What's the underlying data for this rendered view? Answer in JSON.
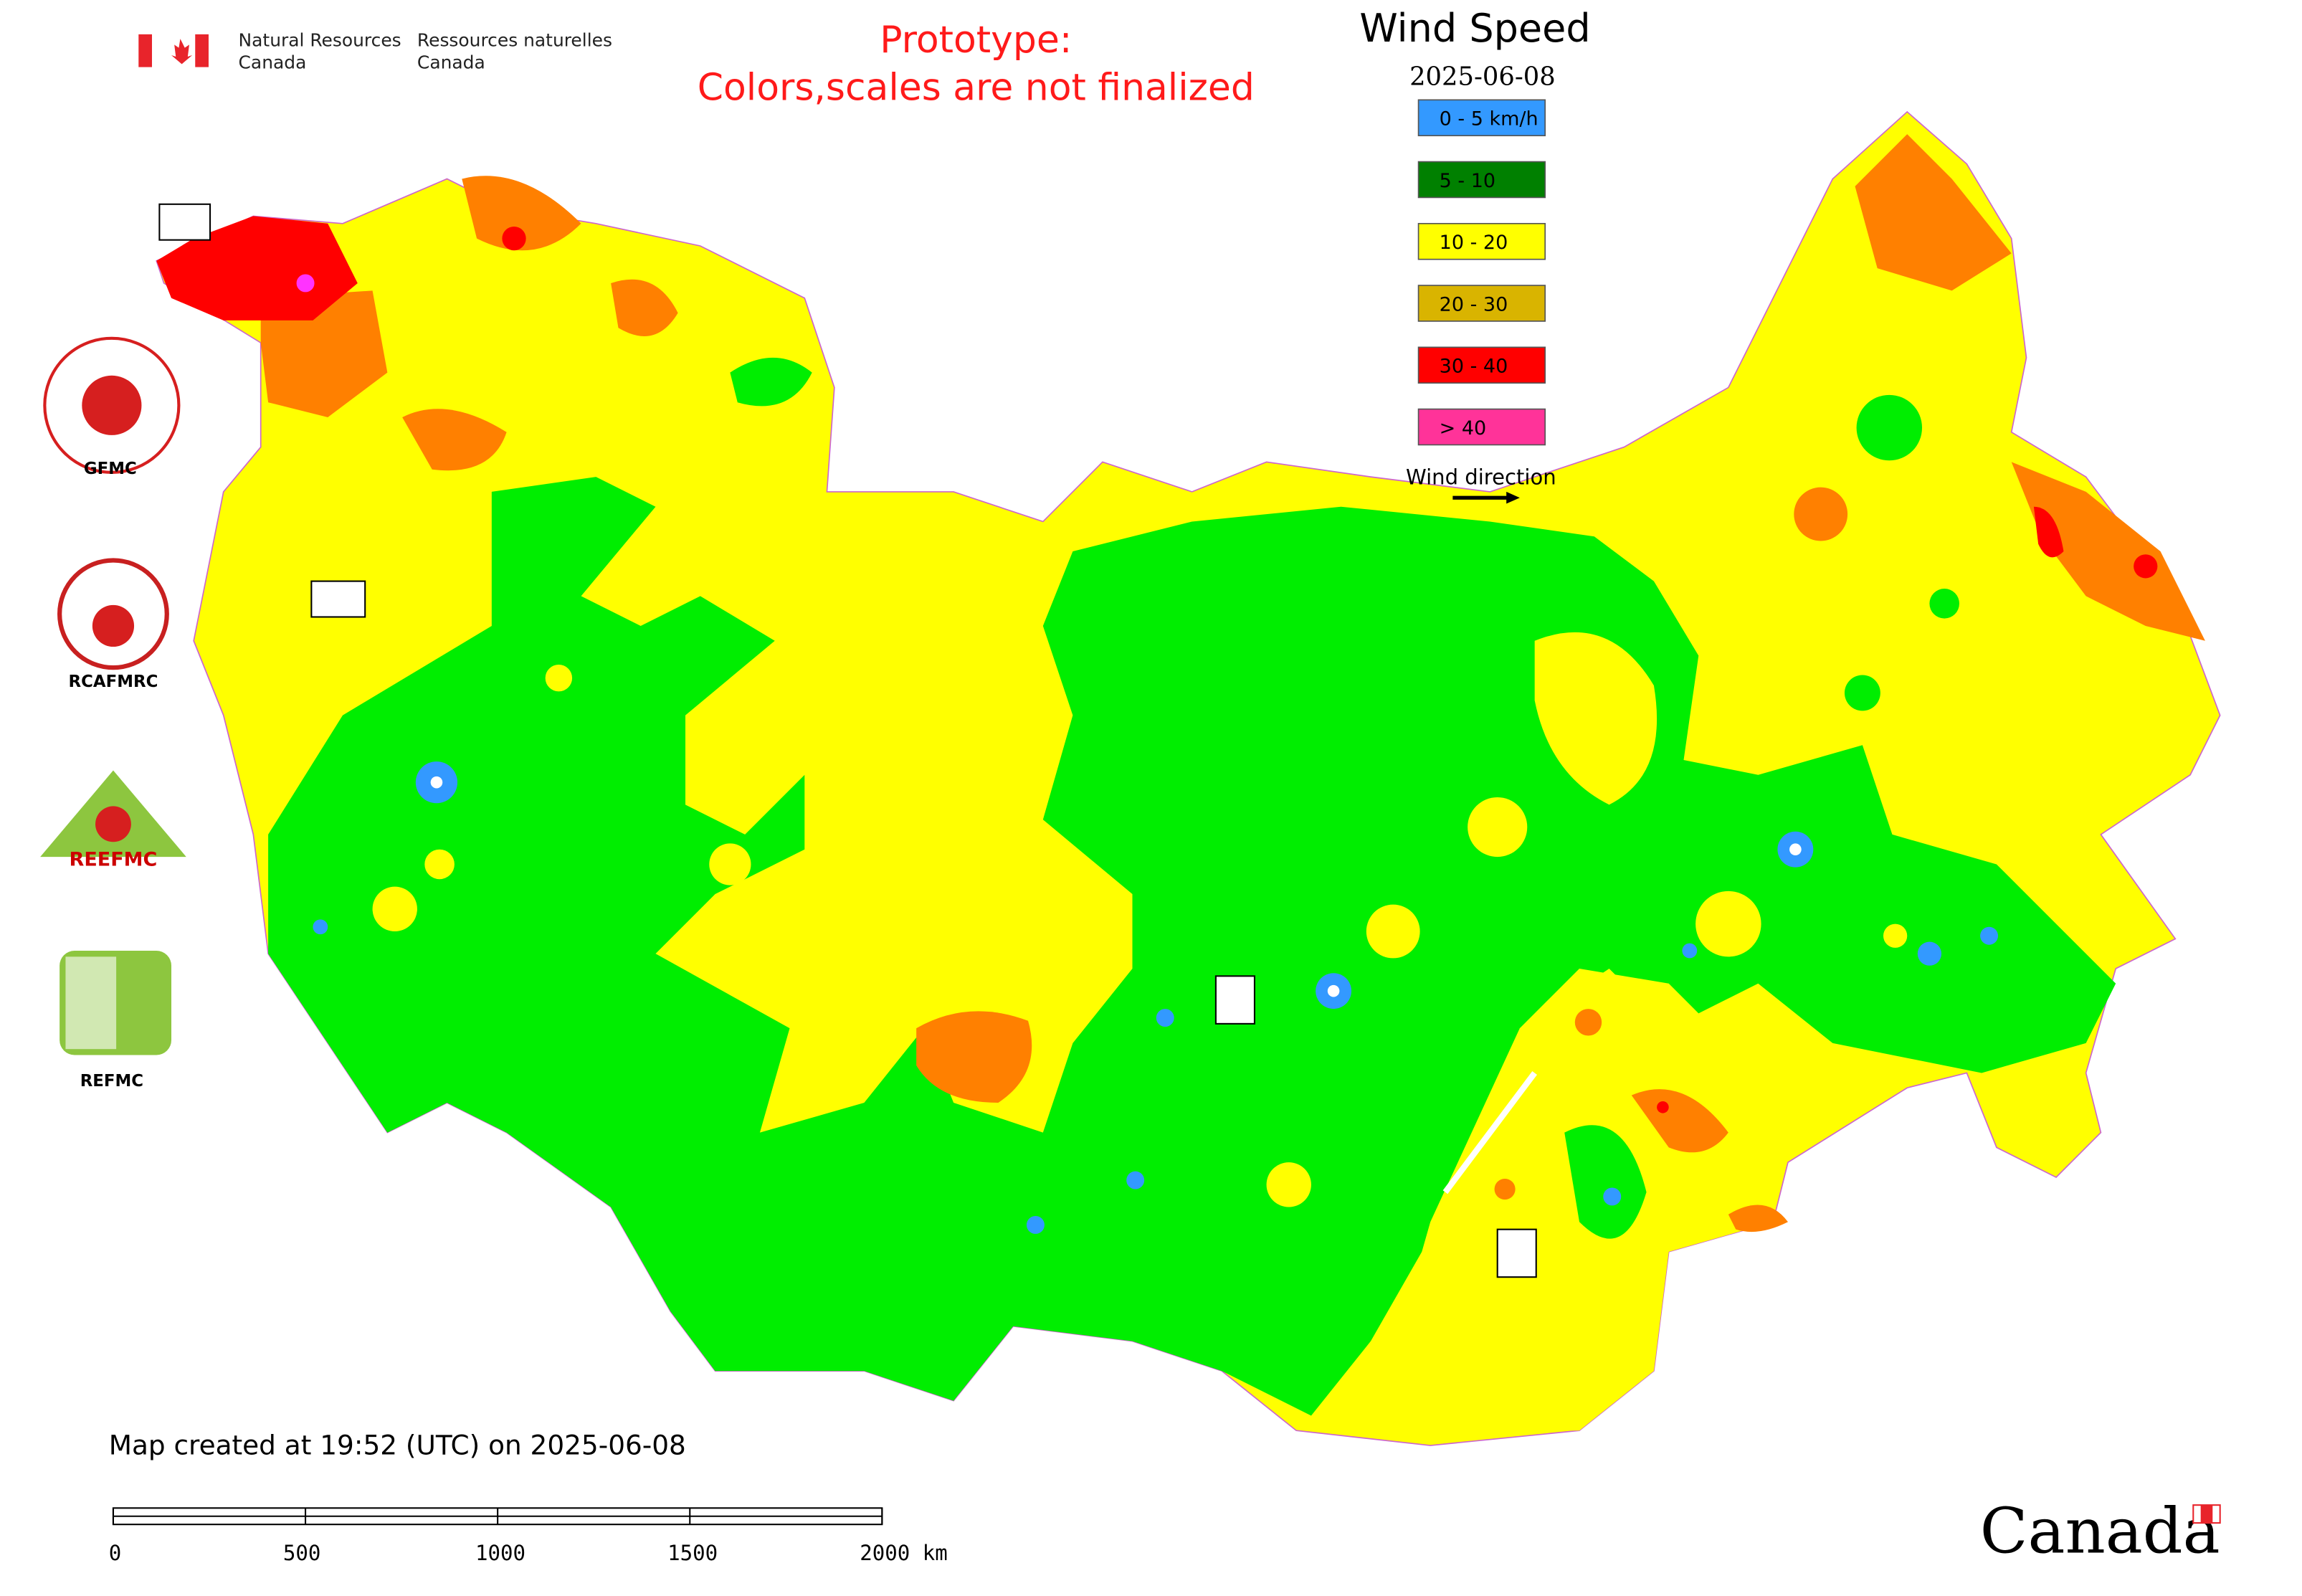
{
  "header": {
    "agency_en": [
      "Natural Resources",
      "Canada"
    ],
    "agency_fr": [
      "Ressources naturelles",
      "Canada"
    ]
  },
  "notice": [
    "Prototype:",
    "Colors,scales are not finalized"
  ],
  "legend": {
    "title": "Wind Speed",
    "date": "2025-06-08",
    "items": [
      {
        "label": "0 - 5 km/h",
        "color": "#3399ff"
      },
      {
        "label": "5 - 10",
        "color": "#008000"
      },
      {
        "label": "10 - 20",
        "color": "#ffff00"
      },
      {
        "label": "20 - 30",
        "color": "#d9b400"
      },
      {
        "label": "30 - 40",
        "color": "#ff0000"
      },
      {
        "label": "> 40",
        "color": "#ff3399"
      }
    ],
    "direction_label": "Wind direction"
  },
  "logos": [
    "GFMC",
    "RCAFMRC",
    "REFMC"
  ],
  "reefmc_logo": "REEFMC",
  "footer": {
    "created": "Map created at 19:52 (UTC) on 2025-06-08",
    "scale_labels": [
      "0",
      "500",
      "1000",
      "1500",
      "2000 km"
    ]
  },
  "wordmark": "Canada"
}
